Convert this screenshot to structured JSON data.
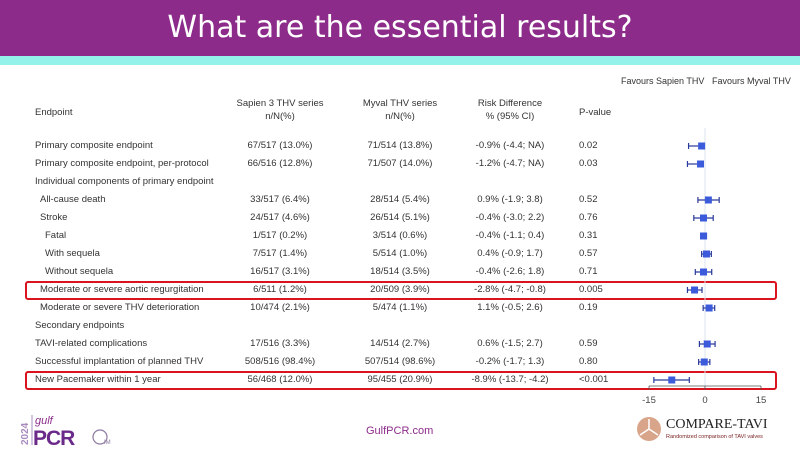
{
  "title": "What are the essential results?",
  "colors": {
    "header": "#8c2b8a",
    "strip": "#93f3ea",
    "marker": "#3b5bdb",
    "highlight": "#d9141e"
  },
  "table": {
    "headers": {
      "endpoint": "Endpoint",
      "sapien": [
        "Sapien 3 THV series",
        "n/N(%)"
      ],
      "myval": [
        "Myval THV series",
        "n/N(%)"
      ],
      "rd": [
        "Risk Difference",
        "% (95% CI)"
      ],
      "p": "P-value"
    },
    "rows": [
      {
        "endpoint": "Primary composite endpoint",
        "indent": 0,
        "sapien": "67/517 (13.0%)",
        "myval": "71/514 (13.8%)",
        "rd": "-0.9% (-4.4; NA)",
        "p": "0.02"
      },
      {
        "endpoint": "Primary composite endpoint, per-protocol",
        "indent": 0,
        "sapien": "66/516 (12.8%)",
        "myval": "71/507 (14.0%)",
        "rd": "-1.2% (-4.7; NA)",
        "p": "0.03"
      },
      {
        "endpoint": "Individual components of primary endpoint",
        "indent": 0,
        "sapien": "",
        "myval": "",
        "rd": "",
        "p": ""
      },
      {
        "endpoint": "All-cause death",
        "indent": 1,
        "sapien": "33/517 (6.4%)",
        "myval": "28/514 (5.4%)",
        "rd": "0.9% (-1.9; 3.8)",
        "p": "0.52"
      },
      {
        "endpoint": "Stroke",
        "indent": 1,
        "sapien": "24/517 (4.6%)",
        "myval": "26/514 (5.1%)",
        "rd": "-0.4% (-3.0; 2.2)",
        "p": "0.76"
      },
      {
        "endpoint": "Fatal",
        "indent": 2,
        "sapien": "1/517 (0.2%)",
        "myval": "3/514 (0.6%)",
        "rd": "-0.4% (-1.1; 0.4)",
        "p": "0.31"
      },
      {
        "endpoint": "With sequela",
        "indent": 2,
        "sapien": "7/517 (1.4%)",
        "myval": "5/514 (1.0%)",
        "rd": "0.4% (-0.9; 1.7)",
        "p": "0.57"
      },
      {
        "endpoint": "Without sequela",
        "indent": 2,
        "sapien": "16/517 (3.1%)",
        "myval": "18/514 (3.5%)",
        "rd": "-0.4% (-2.6; 1.8)",
        "p": "0.71"
      },
      {
        "endpoint": "Moderate or severe aortic regurgitation",
        "indent": 1,
        "sapien": "6/511 (1.2%)",
        "myval": "20/509 (3.9%)",
        "rd": "-2.8% (-4.7; -0.8)",
        "p": "0.005",
        "highlight": true
      },
      {
        "endpoint": "Moderate or severe THV deterioration",
        "indent": 1,
        "sapien": "10/474 (2.1%)",
        "myval": "5/474 (1.1%)",
        "rd": "1.1% (-0.5; 2.6)",
        "p": "0.19"
      },
      {
        "endpoint": "Secondary endpoints",
        "indent": 0,
        "sapien": "",
        "myval": "",
        "rd": "",
        "p": ""
      },
      {
        "endpoint": "TAVI-related complications",
        "indent": 0,
        "sapien": "17/516 (3.3%)",
        "myval": "14/514 (2.7%)",
        "rd": "0.6% (-1.5; 2.7)",
        "p": "0.59"
      },
      {
        "endpoint": "Successful implantation of planned THV",
        "indent": 0,
        "sapien": "508/516 (98.4%)",
        "myval": "507/514 (98.6%)",
        "rd": "-0.2% (-1.7; 1.3)",
        "p": "0.80"
      },
      {
        "endpoint": "New Pacemaker within 1 year",
        "indent": 0,
        "sapien": "56/468 (12.0%)",
        "myval": "95/455 (20.9%)",
        "rd": "-8.9% (-13.7; -4.2)",
        "p": "<0.001",
        "highlight": true
      }
    ]
  },
  "chart_data": {
    "type": "forest",
    "labels": {
      "left": "Favours Sapien THV",
      "right": "Favours Myval THV"
    },
    "xlim": [
      -15,
      15
    ],
    "ticks": [
      -15,
      0,
      15
    ],
    "tick_labels": [
      "-15",
      "0",
      "15"
    ],
    "points": [
      {
        "est": -0.9,
        "lo": -4.4,
        "hi": null
      },
      {
        "est": -1.2,
        "lo": -4.7,
        "hi": null
      },
      null,
      {
        "est": 0.9,
        "lo": -1.9,
        "hi": 3.8
      },
      {
        "est": -0.4,
        "lo": -3.0,
        "hi": 2.2
      },
      {
        "est": -0.4,
        "lo": -1.1,
        "hi": 0.4
      },
      {
        "est": 0.4,
        "lo": -0.9,
        "hi": 1.7
      },
      {
        "est": -0.4,
        "lo": -2.6,
        "hi": 1.8
      },
      {
        "est": -2.8,
        "lo": -4.7,
        "hi": -0.8
      },
      {
        "est": 1.1,
        "lo": -0.5,
        "hi": 2.6
      },
      null,
      {
        "est": 0.6,
        "lo": -1.5,
        "hi": 2.7
      },
      {
        "est": -0.2,
        "lo": -1.7,
        "hi": 1.3
      },
      {
        "est": -8.9,
        "lo": -13.7,
        "hi": -4.2
      }
    ]
  },
  "footer": {
    "link": "GulfPCR.com",
    "left_logo": {
      "year": "2024",
      "text": "gulf PCR",
      "sub": "GIM"
    },
    "right_logo": {
      "title": "COMPARE-TAVI",
      "subtitle": "Randomized comparison of TAVI valves"
    }
  }
}
